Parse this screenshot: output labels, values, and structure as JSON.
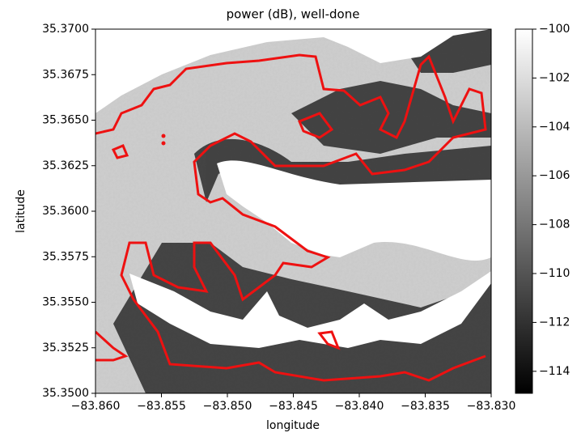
{
  "chart_data": {
    "type": "map",
    "title": "power (dB), well-done",
    "xlabel": "longitude",
    "ylabel": "latitude",
    "xlim": [
      -83.86,
      -83.83
    ],
    "ylim": [
      35.35,
      35.37
    ],
    "xticks": [
      {
        "value": -83.86,
        "label": "−83.860"
      },
      {
        "value": -83.855,
        "label": "−83.855"
      },
      {
        "value": -83.85,
        "label": "−83.850"
      },
      {
        "value": -83.845,
        "label": "−83.845"
      },
      {
        "value": -83.84,
        "label": "−83.840"
      },
      {
        "value": -83.835,
        "label": "−83.835"
      },
      {
        "value": -83.83,
        "label": "−83.830"
      }
    ],
    "yticks": [
      {
        "value": 35.35,
        "label": "35.3500"
      },
      {
        "value": 35.3525,
        "label": "35.3525"
      },
      {
        "value": 35.355,
        "label": "35.3550"
      },
      {
        "value": 35.3575,
        "label": "35.3575"
      },
      {
        "value": 35.36,
        "label": "35.3600"
      },
      {
        "value": 35.3625,
        "label": "35.3625"
      },
      {
        "value": 35.365,
        "label": "35.3650"
      },
      {
        "value": 35.3675,
        "label": "35.3675"
      },
      {
        "value": 35.37,
        "label": "35.3700"
      }
    ],
    "colorbar": {
      "lim": [
        -114.9,
        -100
      ],
      "ticks": [
        {
          "value": -100,
          "label": "−100"
        },
        {
          "value": -102,
          "label": "−102"
        },
        {
          "value": -104,
          "label": "−104"
        },
        {
          "value": -106,
          "label": "−106"
        },
        {
          "value": -108,
          "label": "−108"
        },
        {
          "value": -110,
          "label": "−110"
        },
        {
          "value": -112,
          "label": "−112"
        },
        {
          "value": -114,
          "label": "−114"
        }
      ]
    },
    "colormap": "gray",
    "contour_color": "#ee1111"
  }
}
